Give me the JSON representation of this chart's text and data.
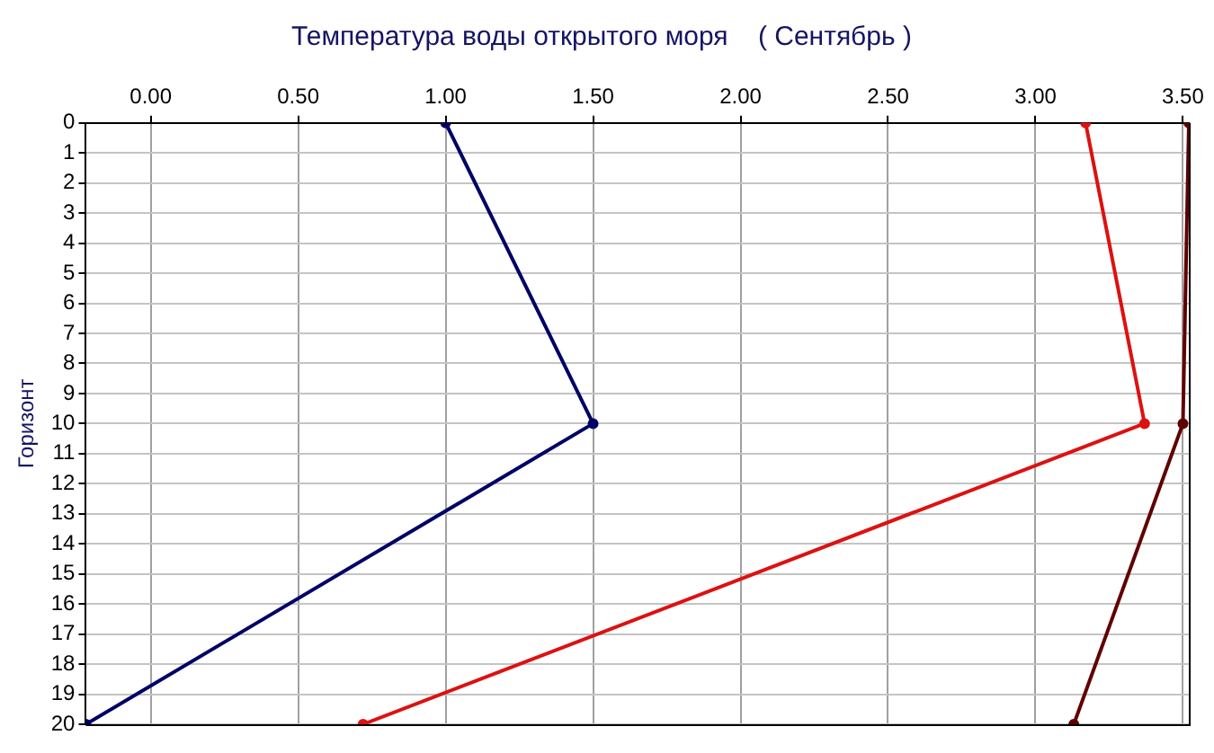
{
  "chart_data": {
    "type": "line",
    "title": "Температура воды открытого моря    ( Сентябрь )",
    "ylabel": "Горизонт",
    "xlim": [
      -0.22,
      3.52
    ],
    "xticks": [
      {
        "value": 0,
        "label": "0.00"
      },
      {
        "value": 0.5,
        "label": "0.50"
      },
      {
        "value": 1,
        "label": "1.00"
      },
      {
        "value": 1.5,
        "label": "1.50"
      },
      {
        "value": 2,
        "label": "2.00"
      },
      {
        "value": 2.5,
        "label": "2.50"
      },
      {
        "value": 3,
        "label": "3.00"
      },
      {
        "value": 3.5,
        "label": "3.50"
      }
    ],
    "ylim": [
      20,
      0
    ],
    "yticks": [
      0,
      1,
      2,
      3,
      4,
      5,
      6,
      7,
      8,
      9,
      10,
      11,
      12,
      13,
      14,
      15,
      16,
      17,
      18,
      19,
      20
    ],
    "grid": true,
    "marker": "circle",
    "series": [
      {
        "color": "#000066",
        "x": [
          1.0,
          1.5,
          -0.22
        ],
        "values": [
          0,
          10,
          20
        ]
      },
      {
        "color": "#dd1111",
        "x": [
          3.17,
          3.37,
          0.72
        ],
        "values": [
          0,
          10,
          20
        ]
      },
      {
        "color": "#600000",
        "x": [
          3.52,
          3.5,
          3.13
        ],
        "values": [
          0,
          10,
          20
        ]
      }
    ]
  }
}
